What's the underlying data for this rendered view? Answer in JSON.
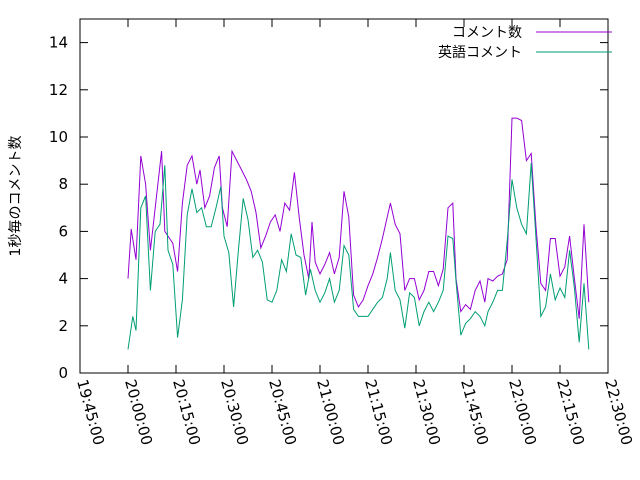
{
  "chart_data": {
    "type": "line",
    "title": "",
    "xlabel": "",
    "ylabel": "1秒毎のコメント数",
    "x_domain": [
      "19:45:00",
      "22:30:00"
    ],
    "xlim": [
      "19:45:00",
      "22:30:00"
    ],
    "ylim": [
      0,
      15
    ],
    "x_ticks": [
      "19:45:00",
      "20:00:00",
      "20:15:00",
      "20:30:00",
      "20:45:00",
      "21:00:00",
      "21:15:00",
      "21:30:00",
      "21:45:00",
      "22:00:00",
      "22:15:00",
      "22:30:00"
    ],
    "y_ticks": [
      0,
      2,
      4,
      6,
      8,
      10,
      12,
      14
    ],
    "grid": false,
    "legend_position": "top-right",
    "series": [
      {
        "name": "コメント数",
        "color": "#9400d3",
        "points": [
          [
            "20:00:00",
            4.0
          ],
          [
            "20:01:00",
            6.1
          ],
          [
            "20:02:30",
            4.8
          ],
          [
            "20:04:00",
            9.2
          ],
          [
            "20:05:30",
            8.0
          ],
          [
            "20:07:00",
            5.2
          ],
          [
            "20:08:30",
            7.0
          ],
          [
            "20:10:30",
            9.4
          ],
          [
            "20:11:30",
            6.0
          ],
          [
            "20:13:00",
            5.7
          ],
          [
            "20:14:00",
            5.5
          ],
          [
            "20:15:30",
            4.3
          ],
          [
            "20:17:00",
            7.2
          ],
          [
            "20:18:30",
            8.8
          ],
          [
            "20:20:00",
            9.2
          ],
          [
            "20:21:30",
            8.0
          ],
          [
            "20:22:30",
            8.6
          ],
          [
            "20:24:00",
            7.0
          ],
          [
            "20:25:30",
            7.5
          ],
          [
            "20:27:00",
            8.7
          ],
          [
            "20:28:30",
            9.2
          ],
          [
            "20:29:30",
            7.0
          ],
          [
            "20:31:00",
            6.2
          ],
          [
            "20:32:30",
            9.4
          ],
          [
            "20:34:00",
            9.0
          ],
          [
            "20:35:30",
            8.6
          ],
          [
            "20:37:00",
            8.2
          ],
          [
            "20:38:30",
            7.7
          ],
          [
            "20:40:00",
            6.8
          ],
          [
            "20:41:30",
            5.3
          ],
          [
            "20:43:00",
            5.8
          ],
          [
            "20:44:30",
            6.4
          ],
          [
            "20:46:00",
            6.7
          ],
          [
            "20:47:30",
            6.0
          ],
          [
            "20:49:00",
            7.2
          ],
          [
            "20:50:30",
            6.9
          ],
          [
            "20:52:00",
            8.5
          ],
          [
            "20:53:30",
            6.6
          ],
          [
            "20:55:00",
            5.0
          ],
          [
            "20:56:30",
            4.0
          ],
          [
            "20:57:30",
            6.4
          ],
          [
            "20:58:30",
            4.7
          ],
          [
            "21:00:00",
            4.2
          ],
          [
            "21:01:30",
            4.6
          ],
          [
            "21:03:00",
            5.1
          ],
          [
            "21:04:30",
            4.2
          ],
          [
            "21:06:00",
            4.9
          ],
          [
            "21:07:30",
            7.7
          ],
          [
            "21:09:00",
            6.6
          ],
          [
            "21:10:30",
            3.3
          ],
          [
            "21:12:00",
            2.8
          ],
          [
            "21:13:30",
            3.1
          ],
          [
            "21:15:00",
            3.7
          ],
          [
            "21:16:30",
            4.2
          ],
          [
            "21:18:00",
            4.9
          ],
          [
            "21:19:30",
            5.7
          ],
          [
            "21:21:00",
            6.6
          ],
          [
            "21:22:00",
            7.2
          ],
          [
            "21:23:30",
            6.3
          ],
          [
            "21:25:00",
            5.9
          ],
          [
            "21:26:30",
            3.5
          ],
          [
            "21:28:00",
            4.0
          ],
          [
            "21:29:30",
            4.0
          ],
          [
            "21:31:00",
            3.1
          ],
          [
            "21:32:30",
            3.5
          ],
          [
            "21:34:00",
            4.3
          ],
          [
            "21:35:30",
            4.3
          ],
          [
            "21:37:00",
            3.7
          ],
          [
            "21:38:30",
            4.4
          ],
          [
            "21:40:00",
            7.0
          ],
          [
            "21:41:30",
            7.2
          ],
          [
            "21:42:30",
            4.0
          ],
          [
            "21:44:00",
            2.6
          ],
          [
            "21:45:30",
            2.9
          ],
          [
            "21:47:00",
            2.7
          ],
          [
            "21:48:30",
            3.5
          ],
          [
            "21:50:00",
            3.9
          ],
          [
            "21:51:30",
            3.0
          ],
          [
            "21:52:30",
            4.0
          ],
          [
            "21:54:00",
            3.9
          ],
          [
            "21:55:30",
            4.1
          ],
          [
            "21:57:00",
            4.2
          ],
          [
            "21:58:30",
            4.8
          ],
          [
            "22:00:00",
            10.8
          ],
          [
            "22:01:30",
            10.8
          ],
          [
            "22:03:00",
            10.7
          ],
          [
            "22:04:30",
            9.0
          ],
          [
            "22:06:00",
            9.3
          ],
          [
            "22:07:30",
            6.2
          ],
          [
            "22:09:00",
            3.8
          ],
          [
            "22:10:30",
            3.5
          ],
          [
            "22:12:00",
            5.7
          ],
          [
            "22:13:30",
            5.7
          ],
          [
            "22:15:00",
            4.1
          ],
          [
            "22:16:30",
            4.5
          ],
          [
            "22:18:00",
            5.8
          ],
          [
            "22:19:30",
            4.0
          ],
          [
            "22:21:00",
            2.3
          ],
          [
            "22:22:30",
            6.3
          ],
          [
            "22:24:00",
            3.0
          ]
        ]
      },
      {
        "name": "英語コメント",
        "color": "#009e73",
        "points": [
          [
            "20:00:00",
            1.0
          ],
          [
            "20:01:30",
            2.4
          ],
          [
            "20:02:30",
            1.8
          ],
          [
            "20:04:00",
            7.0
          ],
          [
            "20:05:30",
            7.5
          ],
          [
            "20:07:00",
            3.5
          ],
          [
            "20:08:30",
            6.0
          ],
          [
            "20:10:00",
            6.3
          ],
          [
            "20:11:30",
            8.8
          ],
          [
            "20:12:30",
            5.2
          ],
          [
            "20:14:00",
            4.6
          ],
          [
            "20:15:30",
            1.5
          ],
          [
            "20:17:00",
            3.1
          ],
          [
            "20:18:30",
            6.7
          ],
          [
            "20:20:00",
            7.8
          ],
          [
            "20:21:30",
            6.8
          ],
          [
            "20:23:00",
            7.0
          ],
          [
            "20:24:30",
            6.2
          ],
          [
            "20:26:00",
            6.2
          ],
          [
            "20:27:30",
            7.0
          ],
          [
            "20:29:00",
            7.9
          ],
          [
            "20:30:00",
            5.8
          ],
          [
            "20:31:30",
            5.1
          ],
          [
            "20:33:00",
            2.8
          ],
          [
            "20:34:30",
            5.2
          ],
          [
            "20:36:00",
            7.4
          ],
          [
            "20:37:30",
            6.5
          ],
          [
            "20:39:00",
            4.9
          ],
          [
            "20:40:30",
            5.2
          ],
          [
            "20:42:00",
            4.7
          ],
          [
            "20:43:30",
            3.1
          ],
          [
            "20:45:00",
            3.0
          ],
          [
            "20:46:30",
            3.5
          ],
          [
            "20:48:00",
            4.8
          ],
          [
            "20:49:30",
            4.3
          ],
          [
            "20:51:00",
            5.9
          ],
          [
            "20:52:30",
            5.0
          ],
          [
            "20:54:00",
            4.9
          ],
          [
            "20:55:30",
            3.3
          ],
          [
            "20:57:00",
            4.4
          ],
          [
            "20:58:30",
            3.5
          ],
          [
            "21:00:00",
            3.0
          ],
          [
            "21:01:30",
            3.4
          ],
          [
            "21:03:00",
            4.0
          ],
          [
            "21:04:30",
            3.0
          ],
          [
            "21:06:00",
            3.5
          ],
          [
            "21:07:30",
            5.4
          ],
          [
            "21:09:00",
            5.0
          ],
          [
            "21:10:30",
            2.7
          ],
          [
            "21:12:00",
            2.4
          ],
          [
            "21:13:30",
            2.4
          ],
          [
            "21:15:00",
            2.4
          ],
          [
            "21:16:30",
            2.7
          ],
          [
            "21:18:00",
            3.0
          ],
          [
            "21:19:30",
            3.2
          ],
          [
            "21:21:00",
            4.0
          ],
          [
            "21:22:00",
            5.1
          ],
          [
            "21:23:30",
            3.5
          ],
          [
            "21:25:00",
            3.1
          ],
          [
            "21:26:30",
            1.9
          ],
          [
            "21:28:00",
            3.4
          ],
          [
            "21:29:30",
            3.2
          ],
          [
            "21:31:00",
            2.0
          ],
          [
            "21:32:30",
            2.6
          ],
          [
            "21:34:00",
            3.0
          ],
          [
            "21:35:30",
            2.6
          ],
          [
            "21:37:00",
            3.0
          ],
          [
            "21:38:30",
            3.5
          ],
          [
            "21:40:00",
            5.8
          ],
          [
            "21:41:30",
            5.7
          ],
          [
            "21:42:30",
            3.9
          ],
          [
            "21:44:00",
            1.6
          ],
          [
            "21:45:30",
            2.1
          ],
          [
            "21:47:00",
            2.3
          ],
          [
            "21:48:30",
            2.6
          ],
          [
            "21:50:00",
            2.4
          ],
          [
            "21:51:30",
            2.0
          ],
          [
            "21:52:30",
            2.6
          ],
          [
            "21:54:00",
            3.0
          ],
          [
            "21:55:30",
            3.5
          ],
          [
            "21:57:00",
            3.5
          ],
          [
            "21:58:30",
            5.6
          ],
          [
            "22:00:00",
            8.2
          ],
          [
            "22:01:30",
            7.0
          ],
          [
            "22:03:00",
            6.3
          ],
          [
            "22:04:30",
            5.9
          ],
          [
            "22:06:00",
            8.9
          ],
          [
            "22:07:30",
            5.7
          ],
          [
            "22:09:00",
            2.4
          ],
          [
            "22:10:30",
            2.8
          ],
          [
            "22:12:00",
            4.2
          ],
          [
            "22:13:30",
            3.1
          ],
          [
            "22:15:00",
            3.6
          ],
          [
            "22:16:30",
            3.2
          ],
          [
            "22:18:00",
            5.2
          ],
          [
            "22:19:30",
            3.6
          ],
          [
            "22:21:00",
            1.3
          ],
          [
            "22:22:30",
            3.8
          ],
          [
            "22:24:00",
            1.0
          ]
        ]
      }
    ]
  }
}
